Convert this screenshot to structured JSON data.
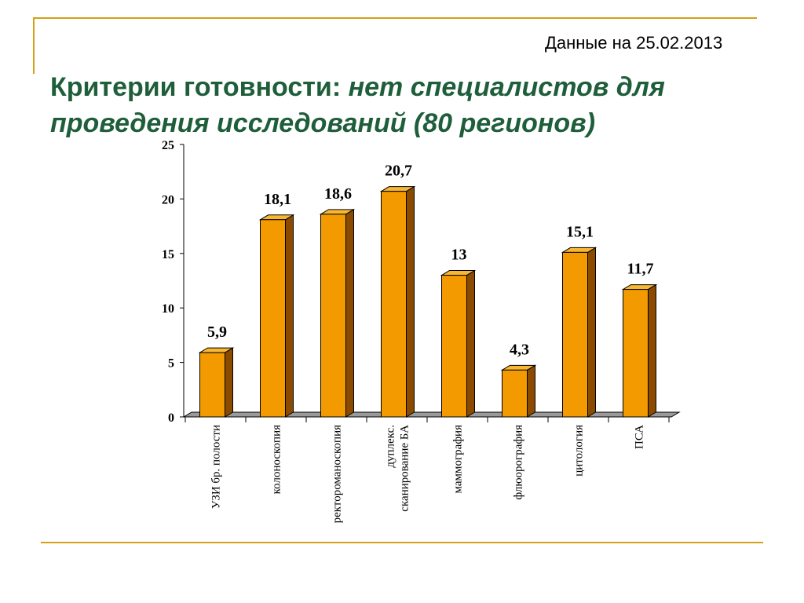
{
  "header": {
    "date_note": "Данные на 25.02.2013",
    "title_plain": "Критерии готовности: ",
    "title_italic": "нет  специалистов для проведения исследований (80 регионов)"
  },
  "colors": {
    "accent_line": "#d4a017",
    "title_text": "#1f5e3a",
    "bar_front": "#f29a00",
    "bar_top": "#f7b733",
    "bar_side": "#8a4b00"
  },
  "chart_data": {
    "type": "bar",
    "title": "",
    "xlabel": "",
    "ylabel": "",
    "ylim": [
      0,
      25
    ],
    "yticks": [
      0,
      5,
      10,
      15,
      20,
      25
    ],
    "grid": false,
    "categories": [
      [
        "УЗИ бр. полости"
      ],
      [
        "колоноскопия"
      ],
      [
        "ректороманоскопия"
      ],
      [
        "дуплекс.",
        "сканирование БА"
      ],
      [
        "маммография"
      ],
      [
        "флюорография"
      ],
      [
        "цитология"
      ],
      [
        "ПСА"
      ]
    ],
    "values": [
      5.9,
      18.1,
      18.6,
      20.7,
      13,
      4.3,
      15.1,
      11.7
    ],
    "value_labels": [
      "5,9",
      "18,1",
      "18,6",
      "20,7",
      "13",
      "4,3",
      "15,1",
      "11,7"
    ]
  }
}
